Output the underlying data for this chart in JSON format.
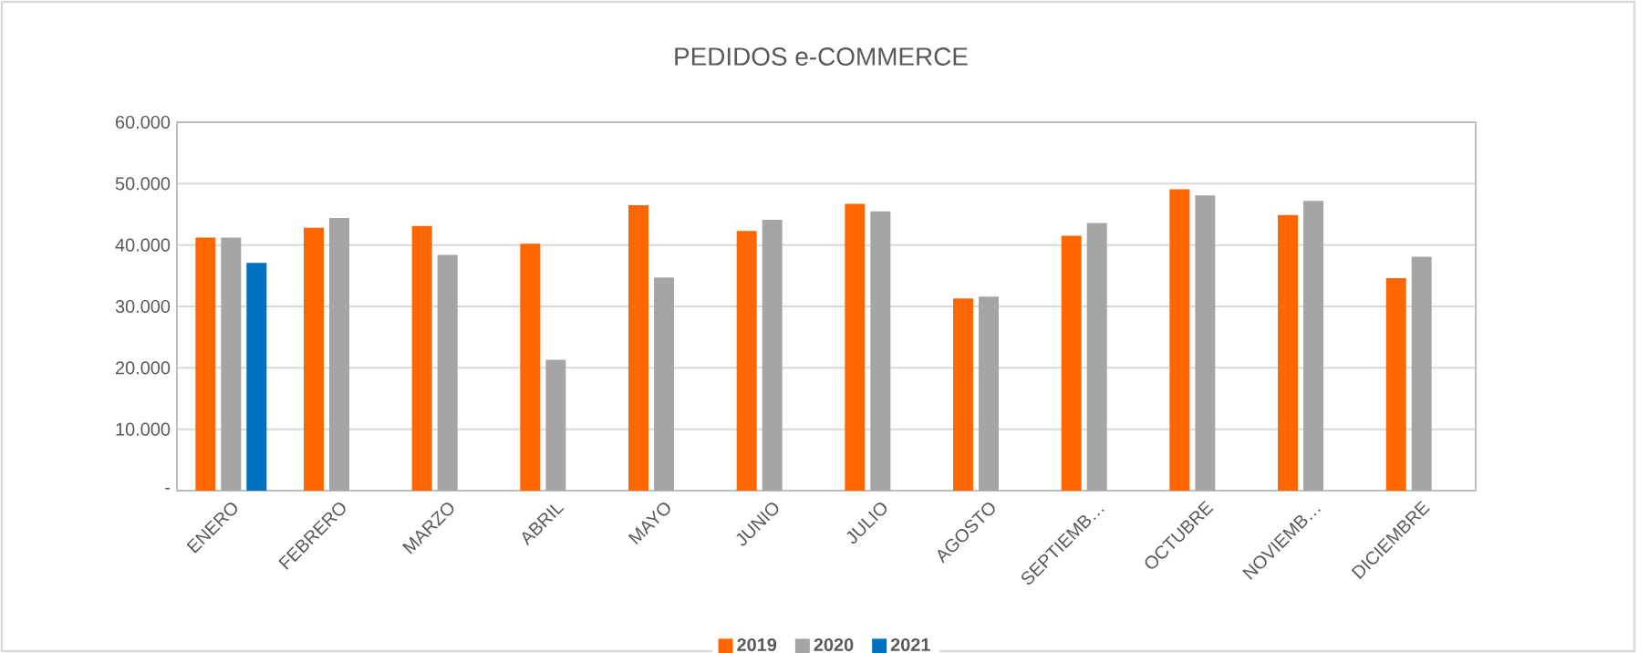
{
  "chart_data": {
    "type": "bar",
    "title": "PEDIDOS e-COMMERCE",
    "categories": [
      "ENERO",
      "FEBRERO",
      "MARZO",
      "ABRIL",
      "MAYO",
      "JUNIO",
      "JULIO",
      "AGOSTO",
      "SEPTIEMB…",
      "OCTUBRE",
      "NOVIEMB…",
      "DICIEMBRE"
    ],
    "series": [
      {
        "name": "2019",
        "color": "#ff6600",
        "values": [
          41200,
          42800,
          43100,
          40200,
          46500,
          42300,
          46700,
          31300,
          41500,
          49100,
          44900,
          34600
        ]
      },
      {
        "name": "2020",
        "color": "#a5a5a5",
        "values": [
          41200,
          44400,
          38400,
          21300,
          34700,
          44100,
          45500,
          31600,
          43600,
          48100,
          47200,
          38100
        ]
      },
      {
        "name": "2021",
        "color": "#0070c0",
        "values": [
          37100,
          null,
          null,
          null,
          null,
          null,
          null,
          null,
          null,
          null,
          null,
          null
        ]
      }
    ],
    "ylim": [
      0,
      60000
    ],
    "yticks": [
      {
        "value": 0,
        "label": "-"
      },
      {
        "value": 10000,
        "label": "10.000"
      },
      {
        "value": 20000,
        "label": "20.000"
      },
      {
        "value": 30000,
        "label": "30.000"
      },
      {
        "value": 40000,
        "label": "40.000"
      },
      {
        "value": 50000,
        "label": "50.000"
      },
      {
        "value": 60000,
        "label": "60.000"
      }
    ],
    "grid": "y",
    "legend": "bottom"
  }
}
